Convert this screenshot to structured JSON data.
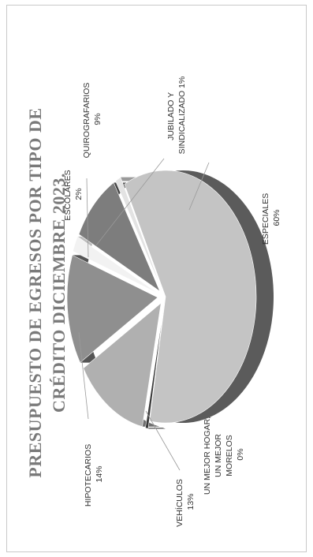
{
  "chart_data": {
    "type": "pie",
    "title_lines": [
      "PRESUPUESTO DE EGRESOS POR TIPO DE",
      "CRÉDITO DICIEMBRE 2023."
    ],
    "slices": [
      {
        "name": "ESPECIALES",
        "value": 60,
        "label": "60%",
        "color": "#c4c4c4",
        "side": "#5b5b5b"
      },
      {
        "name": "UN MEJOR HOGAR, UN MEJOR MORELOS",
        "value": 0.5,
        "label": "0%",
        "color": "#3a3a3a",
        "side": "#222222"
      },
      {
        "name": "VEHÍCULOS",
        "value": 13,
        "label": "13%",
        "color": "#b0b0b0",
        "side": "#707070"
      },
      {
        "name": "HIPOTECARIOS",
        "value": 14,
        "label": "14%",
        "color": "#8f8f8f",
        "side": "#555555"
      },
      {
        "name": "ESCOLARES",
        "value": 2,
        "label": "2%",
        "color": "#f2f2f2",
        "side": "#bdbdbd"
      },
      {
        "name": "QUIROGRAFARIOS",
        "value": 9,
        "label": "9%",
        "color": "#7d7d7d",
        "side": "#454545"
      },
      {
        "name": "JUBILADO Y SINDICALIZADO",
        "value": 1,
        "label": "1%",
        "color": "#e3e3e3",
        "side": "#9a9a9a"
      }
    ],
    "labels": {
      "especiales": {
        "lines": [
          "ESPECIALES",
          "60%"
        ]
      },
      "mejor_hogar": {
        "lines": [
          "UN MEJOR HOGAR,",
          "UN MEJOR",
          "MORELOS",
          "0%"
        ]
      },
      "vehiculos": {
        "lines": [
          "VEHÍCULOS",
          "13%"
        ]
      },
      "hipotecarios": {
        "lines": [
          "HIPOTECARIOS",
          "14%"
        ]
      },
      "escolares": {
        "lines": [
          "ESCOLARES",
          "2%"
        ]
      },
      "quirografarios": {
        "lines": [
          "QUIROGRAFARIOS",
          "9%"
        ]
      },
      "jubilado": {
        "lines": [
          "JUBILADO Y",
          "SINDICALIZADO 1%"
        ]
      }
    }
  }
}
